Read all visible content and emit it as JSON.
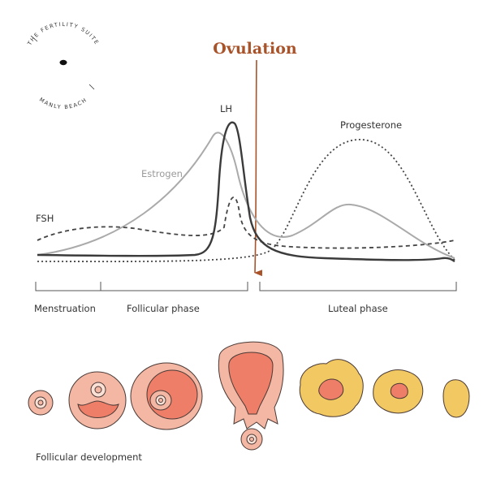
{
  "logo": {
    "top_text": "THE FERTILITY SUITE",
    "bottom_text": "MANLY BEACH"
  },
  "title": "Ovulation",
  "hormones": {
    "lh": "LH",
    "progesterone": "Progesterone",
    "estrogen": "Estrogen",
    "fsh": "FSH"
  },
  "phases": {
    "menstruation": "Menstruation",
    "follicular": "Follicular phase",
    "luteal": "Luteal phase"
  },
  "development_label": "Follicular development",
  "colors": {
    "accent": "#a9532a",
    "lh": "#3b3b3b",
    "estrogen": "#aaaaaa",
    "dashed": "#444444",
    "follicle_fill": "#f4b7a4",
    "follicle_core": "#ee7e68",
    "corpus_luteum": "#f2c862",
    "ink": "#4a3a36"
  }
}
